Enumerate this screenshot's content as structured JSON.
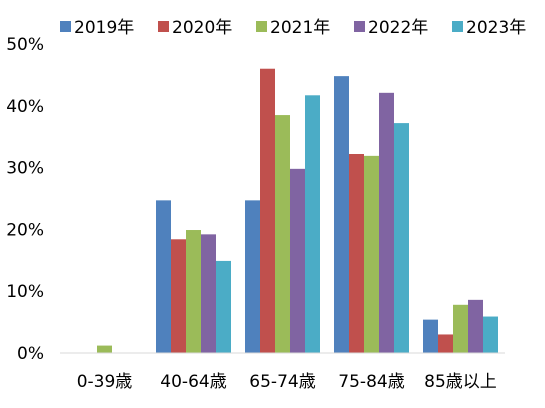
{
  "chart_data": {
    "type": "bar",
    "categories": [
      "0-39歳",
      "40-64歳",
      "65-74歳",
      "75-84歳",
      "85歳以上"
    ],
    "series": [
      {
        "name": "2019年",
        "color": "#4f81bd",
        "values": [
          0,
          24.7,
          24.7,
          44.8,
          5.4
        ]
      },
      {
        "name": "2020年",
        "color": "#c0504d",
        "values": [
          0,
          18.4,
          46.0,
          32.2,
          3.0
        ]
      },
      {
        "name": "2021年",
        "color": "#9bbb59",
        "values": [
          1.2,
          19.9,
          38.5,
          31.9,
          7.8
        ]
      },
      {
        "name": "2022年",
        "color": "#8064a2",
        "values": [
          0,
          19.2,
          29.8,
          42.1,
          8.6
        ]
      },
      {
        "name": "2023年",
        "color": "#4bacc6",
        "values": [
          0,
          14.9,
          41.7,
          37.2,
          5.9
        ]
      }
    ],
    "y_ticks": [
      "0%",
      "10%",
      "20%",
      "30%",
      "40%",
      "50%"
    ],
    "ylim": [
      0,
      50
    ],
    "grid": false,
    "legend_position": "top"
  }
}
